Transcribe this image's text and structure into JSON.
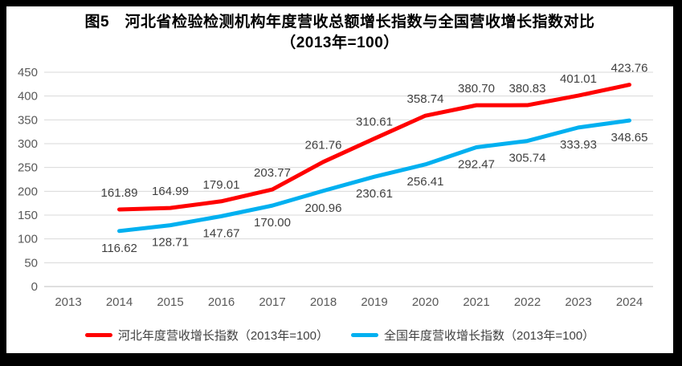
{
  "window": {
    "background_color": "#ffffff",
    "frame_border_color": "#000000"
  },
  "chart_data": {
    "type": "line",
    "title": "图5　河北省检验检测机构年度营收总额增长指数与全国营收增长指数对比",
    "subtitle": "（2013年=100）",
    "categories": [
      "2013",
      "2014",
      "2015",
      "2016",
      "2017",
      "2018",
      "2019",
      "2020",
      "2021",
      "2022",
      "2023",
      "2024"
    ],
    "series": [
      {
        "name": "河北年度营收增长指数（2013年=100）",
        "color": "#ff0000",
        "start_index": 1,
        "values": [
          161.89,
          164.99,
          179.01,
          203.77,
          261.76,
          310.61,
          358.74,
          380.7,
          380.83,
          401.01,
          423.76
        ],
        "labels": [
          "161.89",
          "164.99",
          "179.01",
          "203.77",
          "261.76",
          "310.61",
          "358.74",
          "380.70",
          "380.83",
          "401.01",
          "423.76"
        ],
        "label_position": "above"
      },
      {
        "name": "全国年度营收增长指数（2013年=100）",
        "color": "#00b0f0",
        "start_index": 1,
        "values": [
          116.62,
          128.71,
          147.67,
          170.0,
          200.96,
          230.61,
          256.41,
          292.47,
          305.74,
          333.93,
          348.65
        ],
        "labels": [
          "116.62",
          "128.71",
          "147.67",
          "170.00",
          "200.96",
          "230.61",
          "256.41",
          "292.47",
          "305.74",
          "333.93",
          "348.65"
        ],
        "label_position": "below"
      }
    ],
    "xlabel": "",
    "ylabel": "",
    "ylim": [
      0,
      450
    ],
    "yticks": [
      "0",
      "50",
      "100",
      "150",
      "200",
      "250",
      "300",
      "350",
      "400",
      "450"
    ],
    "grid": true,
    "legend_position": "bottom"
  },
  "style_colors": {
    "gridline": "#d9d9d9",
    "axis_line": "#bfbfbf",
    "tick_text": "#595959",
    "data_label_text": "#404040"
  }
}
